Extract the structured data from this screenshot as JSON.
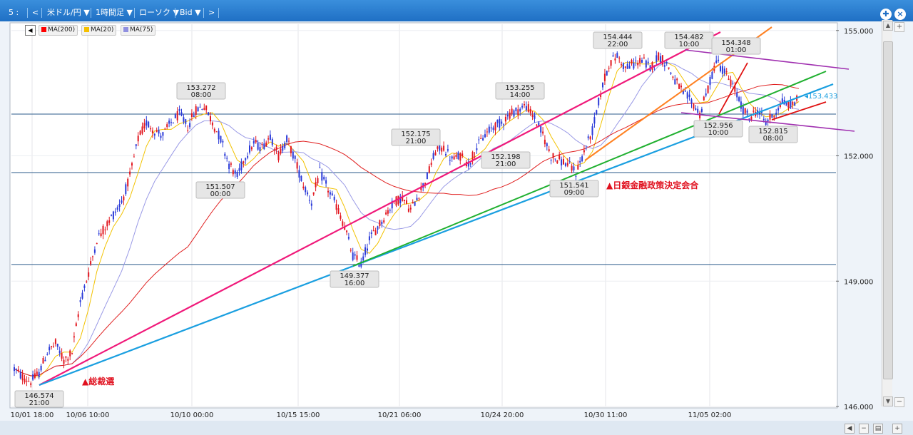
{
  "toolbar": {
    "panel_id": "5 :",
    "prev_label": "<",
    "symbol": "米ドル/円 ▼",
    "timeframe": "1時間足 ▼",
    "chart_type": "ローソク ▼",
    "price_type": "Bid ▼",
    "next_label": ">",
    "window_control": "✚"
  },
  "legend": [
    {
      "name": "MA(200)",
      "color": "#ff0000"
    },
    {
      "name": "MA(20)",
      "color": "#f5c000"
    },
    {
      "name": "MA(75)",
      "color": "#9090e0"
    }
  ],
  "colors": {
    "candle_up": "#e2161f",
    "candle_down": "#2a3ad8",
    "ma200": "#e02020",
    "ma20": "#f2c200",
    "ma75": "#9a9ae6",
    "magenta_trend": "#f0197a",
    "blue_trend": "#1a9fe0",
    "green_trend": "#20b030",
    "orange_trend": "#ff8020",
    "purple_channel": "#a030b0",
    "red_trend": "#e01010",
    "hline": "#2a5a8a",
    "annotation": "#e0101e"
  },
  "chart_data": {
    "type": "candlestick",
    "symbol": "米ドル/円",
    "timeframe": "1時間足",
    "price_type": "Bid",
    "ylim": [
      146.0,
      155.15
    ],
    "y_ticks": [
      155.0,
      152.0,
      149.0,
      146.0
    ],
    "y_tick_labels": [
      "155.000",
      "152.000",
      "149.000",
      "146.000"
    ],
    "x_tick_labels": [
      "10/01 18:00",
      "10/06 10:00",
      "10/10 00:00",
      "10/15 15:00",
      "10/21 06:00",
      "10/24 20:00",
      "10/30 11:00",
      "11/05 02:00"
    ],
    "current_price": "153.433",
    "price_labels": [
      {
        "price": "146.574",
        "time": "21:00"
      },
      {
        "price": "153.272",
        "time": "08:00"
      },
      {
        "price": "151.507",
        "time": "00:00"
      },
      {
        "price": "149.377",
        "time": "16:00"
      },
      {
        "price": "152.175",
        "time": "21:00"
      },
      {
        "price": "152.198",
        "time": "21:00"
      },
      {
        "price": "153.255",
        "time": "14:00"
      },
      {
        "price": "151.541",
        "time": "09:00"
      },
      {
        "price": "154.444",
        "time": "22:00"
      },
      {
        "price": "154.482",
        "time": "10:00"
      },
      {
        "price": "154.348",
        "time": "01:00"
      },
      {
        "price": "152.956",
        "time": "10:00"
      },
      {
        "price": "152.815",
        "time": "08:00"
      }
    ],
    "annotations": [
      "▲総裁選",
      "▲日銀金融政策決定会合"
    ],
    "horizontal_lines": [
      153.0,
      151.6,
      149.4
    ],
    "moving_averages": [
      "MA(200)",
      "MA(20)",
      "MA(75)"
    ],
    "price_path": [
      146.9,
      146.7,
      146.6,
      146.8,
      147.3,
      147.5,
      147.1,
      147.3,
      148.5,
      149.2,
      150.0,
      150.3,
      150.6,
      150.9,
      151.5,
      152.4,
      152.8,
      152.6,
      152.5,
      152.8,
      153.0,
      152.7,
      153.1,
      153.2,
      152.8,
      152.4,
      151.8,
      151.5,
      152.0,
      152.3,
      152.2,
      152.5,
      152.0,
      152.4,
      151.9,
      151.3,
      150.9,
      151.6,
      151.2,
      150.8,
      150.3,
      149.6,
      149.4,
      150.0,
      150.3,
      150.6,
      150.9,
      151.0,
      150.7,
      151.1,
      151.5,
      152.1,
      152.2,
      151.9,
      152.0,
      151.8,
      152.2,
      152.5,
      152.7,
      152.8,
      153.0,
      153.1,
      153.2,
      152.9,
      152.5,
      152.0,
      151.9,
      151.8,
      151.6,
      152.1,
      152.6,
      153.5,
      154.2,
      154.4,
      154.1,
      154.2,
      154.3,
      154.1,
      154.4,
      154.2,
      153.8,
      153.5,
      153.3,
      153.0,
      153.6,
      154.3,
      154.0,
      153.7,
      153.2,
      152.9,
      153.1,
      152.8,
      153.0,
      153.3,
      153.2,
      153.4
    ]
  }
}
